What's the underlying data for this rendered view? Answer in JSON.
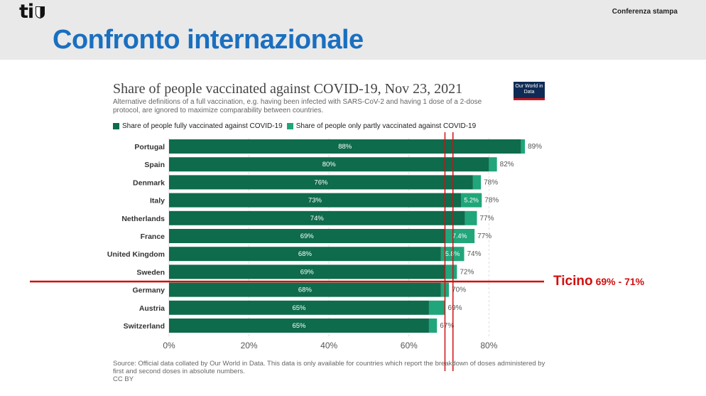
{
  "header": {
    "logo_text": "ti",
    "right_label": "Conferenza stampa",
    "slide_title": "Confronto internazionale"
  },
  "chart_data": {
    "type": "bar",
    "orientation": "horizontal",
    "stacked": true,
    "title": "Share of people vaccinated against COVID-19, Nov 23, 2021",
    "subtitle": "Alternative definitions of a full vaccination, e.g. having been infected with SARS-CoV-2 and having 1 dose of a 2-dose protocol, are ignored to maximize comparability between countries.",
    "categories": [
      "Portugal",
      "Spain",
      "Denmark",
      "Italy",
      "Netherlands",
      "France",
      "United Kingdom",
      "Sweden",
      "Germany",
      "Austria",
      "Switzerland"
    ],
    "series": [
      {
        "name": "Share of people fully vaccinated against COVID-19",
        "color": "#0e6b4c",
        "values": [
          88,
          80,
          76,
          73,
          74,
          69,
          68,
          69,
          68,
          65,
          65
        ],
        "labels": [
          "88%",
          "80%",
          "76%",
          "73%",
          "74%",
          "69%",
          "68%",
          "69%",
          "68%",
          "65%",
          "65%"
        ]
      },
      {
        "name": "Share of people only partly vaccinated against COVID-19",
        "color": "#21a57a",
        "values": [
          1,
          2,
          2,
          5.2,
          3,
          7.4,
          5.8,
          3,
          2,
          4,
          2
        ],
        "labels": [
          "",
          "",
          "",
          "5.2%",
          "",
          "7.4%",
          "5.8%",
          "",
          "",
          "",
          ""
        ]
      }
    ],
    "totals": [
      "89%",
      "82%",
      "78%",
      "78%",
      "77%",
      "77%",
      "74%",
      "72%",
      "70%",
      "69%",
      "67%"
    ],
    "xticks": [
      "0%",
      "20%",
      "40%",
      "60%",
      "80%"
    ],
    "xlim": [
      0,
      90
    ],
    "grid": true,
    "legend_position": "top-left",
    "reference_lines": [
      {
        "name": "Ticino lower",
        "value": 69
      },
      {
        "name": "Ticino upper",
        "value": 71
      }
    ],
    "annotation": {
      "name": "Ticino",
      "range": "69% - 71%",
      "color": "#d10f0f"
    },
    "source": "Source: Official data collated by Our World in Data. This data is only available for countries which report the breakdown of doses administered by first and second doses in absolute numbers.",
    "license": "CC BY",
    "badge": "Our World in Data"
  }
}
